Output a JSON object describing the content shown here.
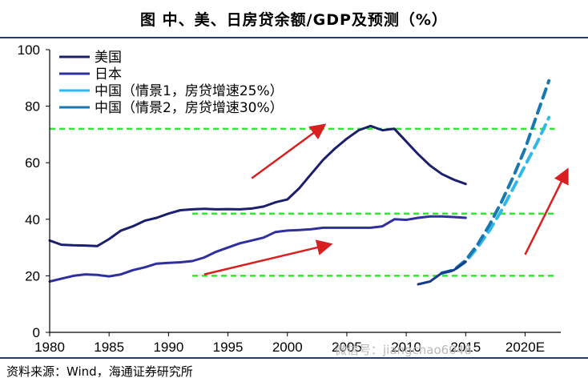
{
  "chart_data": {
    "type": "line",
    "title": "图    中、美、日房贷余额/GDP及预测（%）",
    "xlabel": "",
    "ylabel": "",
    "xlim": [
      1980,
      2023
    ],
    "ylim": [
      0,
      100
    ],
    "yticks": [
      0,
      20,
      40,
      60,
      80,
      100
    ],
    "xticks": [
      {
        "value": 1980,
        "label": "1980"
      },
      {
        "value": 1985,
        "label": "1985"
      },
      {
        "value": 1990,
        "label": "1990"
      },
      {
        "value": 1995,
        "label": "1995"
      },
      {
        "value": 2000,
        "label": "2000"
      },
      {
        "value": 2005,
        "label": "2005"
      },
      {
        "value": 2010,
        "label": "2010"
      },
      {
        "value": 2015,
        "label": "2015"
      },
      {
        "value": 2020,
        "label": "2020E"
      }
    ],
    "legend_position": "top-left",
    "series": [
      {
        "name": "美国",
        "color": "#1c1f6b",
        "style": "solid",
        "points": [
          [
            1980,
            32.5
          ],
          [
            1981,
            31
          ],
          [
            1982,
            30.8
          ],
          [
            1983,
            30.7
          ],
          [
            1984,
            30.5
          ],
          [
            1985,
            33
          ],
          [
            1986,
            36
          ],
          [
            1987,
            37.5
          ],
          [
            1988,
            39.5
          ],
          [
            1989,
            40.5
          ],
          [
            1990,
            42
          ],
          [
            1991,
            43.2
          ],
          [
            1992,
            43.5
          ],
          [
            1993,
            43.7
          ],
          [
            1994,
            43.5
          ],
          [
            1995,
            43.6
          ],
          [
            1996,
            43.5
          ],
          [
            1997,
            43.8
          ],
          [
            1998,
            44.5
          ],
          [
            1999,
            46
          ],
          [
            2000,
            47
          ],
          [
            2001,
            51
          ],
          [
            2002,
            56
          ],
          [
            2003,
            61
          ],
          [
            2004,
            65
          ],
          [
            2005,
            68.5
          ],
          [
            2006,
            71.5
          ],
          [
            2007,
            73
          ],
          [
            2008,
            71.5
          ],
          [
            2009,
            72
          ],
          [
            2010,
            67.5
          ],
          [
            2011,
            63
          ],
          [
            2012,
            59
          ],
          [
            2013,
            56
          ],
          [
            2014,
            54
          ],
          [
            2015,
            52.5
          ]
        ]
      },
      {
        "name": "日本",
        "color": "#2f2fa0",
        "style": "solid",
        "points": [
          [
            1980,
            18
          ],
          [
            1981,
            19
          ],
          [
            1982,
            20
          ],
          [
            1983,
            20.5
          ],
          [
            1984,
            20.3
          ],
          [
            1985,
            19.8
          ],
          [
            1986,
            20.5
          ],
          [
            1987,
            22
          ],
          [
            1988,
            23
          ],
          [
            1989,
            24.3
          ],
          [
            1990,
            24.6
          ],
          [
            1991,
            24.8
          ],
          [
            1992,
            25.2
          ],
          [
            1993,
            26.5
          ],
          [
            1994,
            28.5
          ],
          [
            1995,
            30
          ],
          [
            1996,
            31.5
          ],
          [
            1997,
            32.5
          ],
          [
            1998,
            33.5
          ],
          [
            1999,
            35.5
          ],
          [
            2000,
            36
          ],
          [
            2001,
            36.2
          ],
          [
            2002,
            36.5
          ],
          [
            2003,
            37
          ],
          [
            2004,
            37
          ],
          [
            2005,
            37
          ],
          [
            2006,
            37
          ],
          [
            2007,
            37
          ],
          [
            2008,
            37.5
          ],
          [
            2009,
            40
          ],
          [
            2010,
            39.8
          ],
          [
            2011,
            40.5
          ],
          [
            2012,
            41
          ],
          [
            2013,
            41
          ],
          [
            2014,
            40.8
          ],
          [
            2015,
            40.5
          ]
        ]
      },
      {
        "name": "中国（情景1，房贷增速25%）",
        "color": "#30b8e8",
        "style": "dashed",
        "points": [
          [
            2013,
            21
          ],
          [
            2014,
            22
          ],
          [
            2015,
            25
          ],
          [
            2016,
            30
          ],
          [
            2017,
            36
          ],
          [
            2018,
            43
          ],
          [
            2019,
            51
          ],
          [
            2020,
            59
          ],
          [
            2021,
            67
          ],
          [
            2022,
            76
          ]
        ]
      },
      {
        "name": "中国（情景2，房贷增速30%）",
        "color": "#1a78b0",
        "style": "dashed",
        "points": [
          [
            2013,
            21
          ],
          [
            2014,
            22
          ],
          [
            2015,
            25.5
          ],
          [
            2016,
            31
          ],
          [
            2017,
            38
          ],
          [
            2018,
            46
          ],
          [
            2019,
            55
          ],
          [
            2020,
            65
          ],
          [
            2021,
            77
          ],
          [
            2022,
            89
          ]
        ]
      },
      {
        "name": "",
        "color": "#1a3a8a",
        "style": "solid",
        "points": [
          [
            2011,
            17
          ],
          [
            2012,
            18
          ],
          [
            2013,
            21
          ],
          [
            2014,
            22
          ],
          [
            2015,
            25
          ]
        ]
      }
    ],
    "reference_lines": [
      {
        "y": 72,
        "x_start": 1980,
        "x_end": 2022.5,
        "color": "#3ae03a"
      },
      {
        "y": 42,
        "x_start": 1992,
        "x_end": 2022.5,
        "color": "#3ae03a"
      },
      {
        "y": 20,
        "x_start": 1992,
        "x_end": 2022.5,
        "color": "#3ae03a"
      }
    ],
    "arrows": [
      {
        "from": [
          1997,
          54.5
        ],
        "to": [
          2003,
          73
        ],
        "color": "#d92020"
      },
      {
        "from": [
          1993,
          20.5
        ],
        "to": [
          2003.5,
          31
        ],
        "color": "#d92020"
      },
      {
        "from": [
          2020,
          27.5
        ],
        "to": [
          2023.5,
          57
        ],
        "color": "#d92020"
      }
    ]
  },
  "footer": {
    "source": "资料来源：Wind，海通证券研究所",
    "watermark": "微信号：jiangchao6048"
  }
}
